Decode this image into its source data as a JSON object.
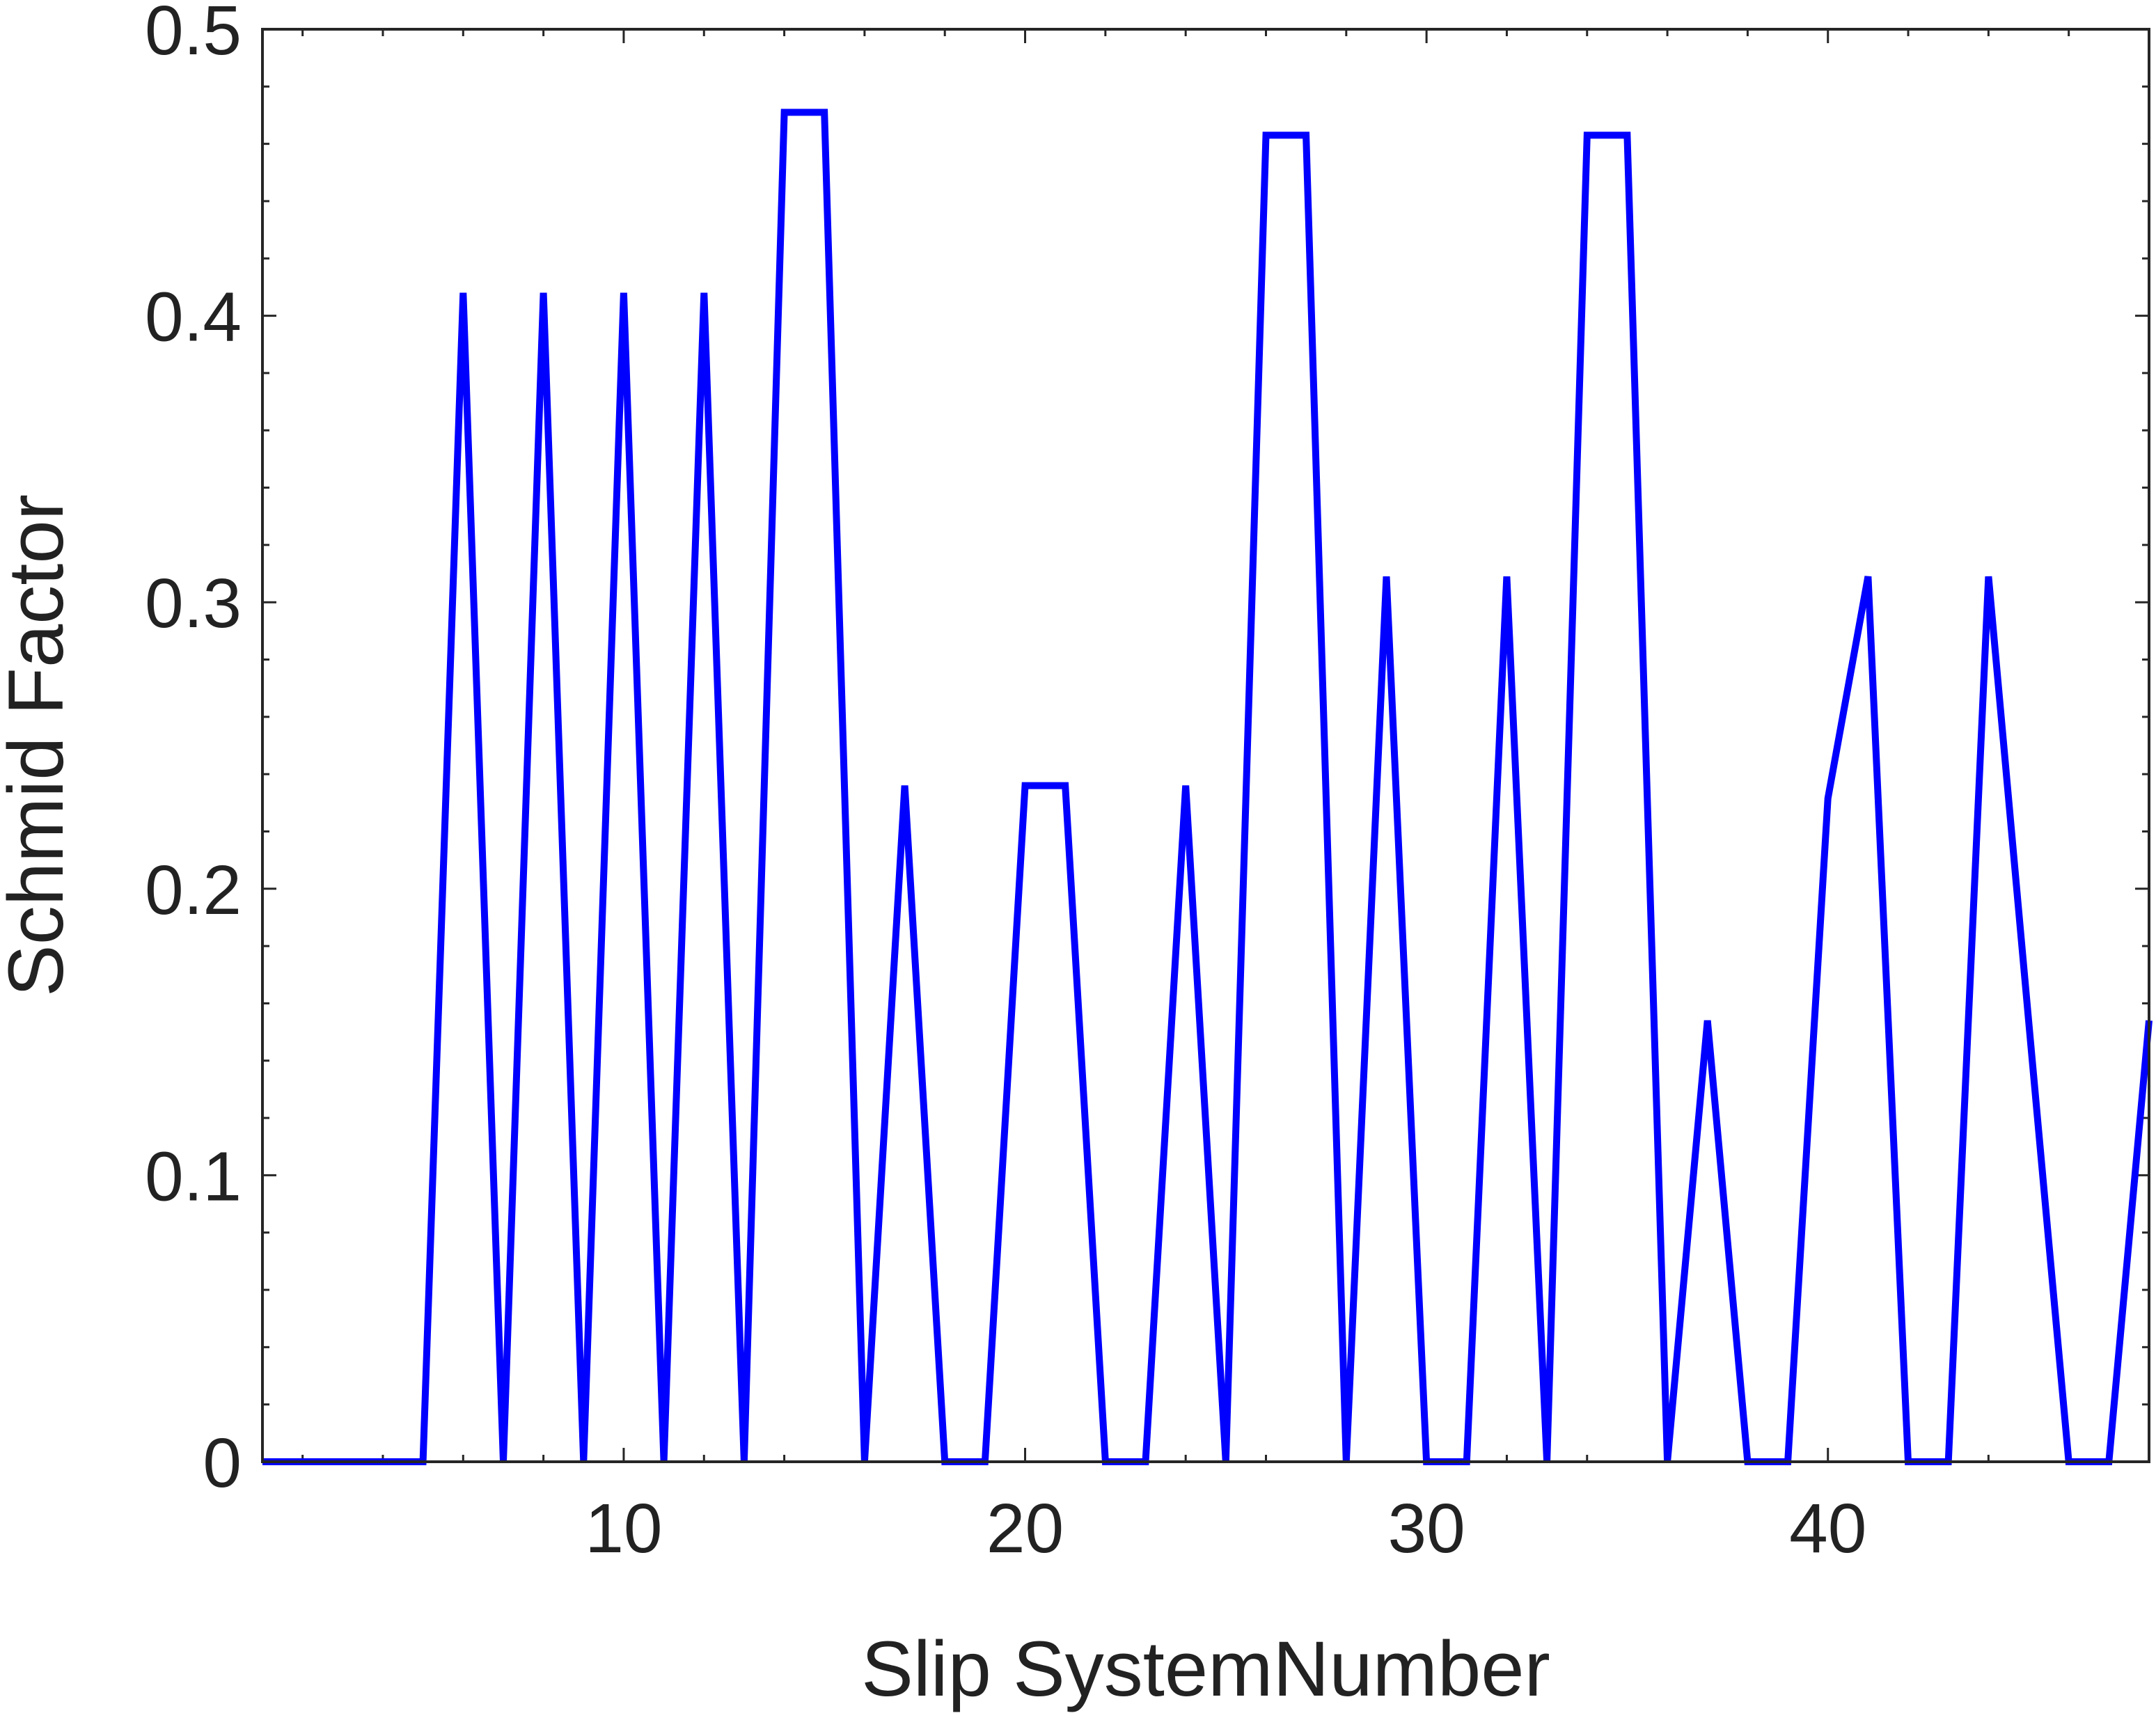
{
  "chart_data": {
    "type": "line",
    "title": "",
    "xlabel": "Slip SystemNumber",
    "ylabel": "Schmid Factor",
    "xlim": [
      1,
      48
    ],
    "ylim": [
      0,
      0.5
    ],
    "x_ticks": [
      10,
      20,
      30,
      40
    ],
    "y_ticks": [
      0,
      0.1,
      0.2,
      0.3,
      0.4,
      0.5
    ],
    "y_tick_labels": [
      "0",
      "0.1",
      "0.2",
      "0.3",
      "0.4",
      "0.5"
    ],
    "grid": false,
    "line_color": "#0000ff",
    "series": [
      {
        "x": [
          1,
          2,
          3,
          4,
          5,
          6,
          7,
          8,
          9,
          10,
          11,
          12,
          13,
          14,
          15,
          16,
          17,
          18,
          19,
          20,
          21,
          22,
          23,
          24,
          25,
          26,
          27,
          28,
          29,
          30,
          31,
          32,
          33,
          34,
          35,
          36,
          37,
          38,
          39,
          40,
          41,
          42,
          43,
          44,
          45,
          46,
          47,
          48
        ],
        "values": [
          0,
          0,
          0,
          0,
          0,
          0.408,
          0,
          0.408,
          0,
          0.408,
          0,
          0.408,
          0,
          0.471,
          0.471,
          0,
          0.236,
          0,
          0,
          0.236,
          0.236,
          0,
          0,
          0.236,
          0,
          0.463,
          0.463,
          0,
          0.309,
          0,
          0,
          0.309,
          0,
          0.463,
          0.463,
          0,
          0.154,
          0,
          0,
          0.2315,
          0.309,
          0,
          0,
          0.309,
          0.154,
          0,
          0,
          0.154
        ]
      }
    ]
  }
}
